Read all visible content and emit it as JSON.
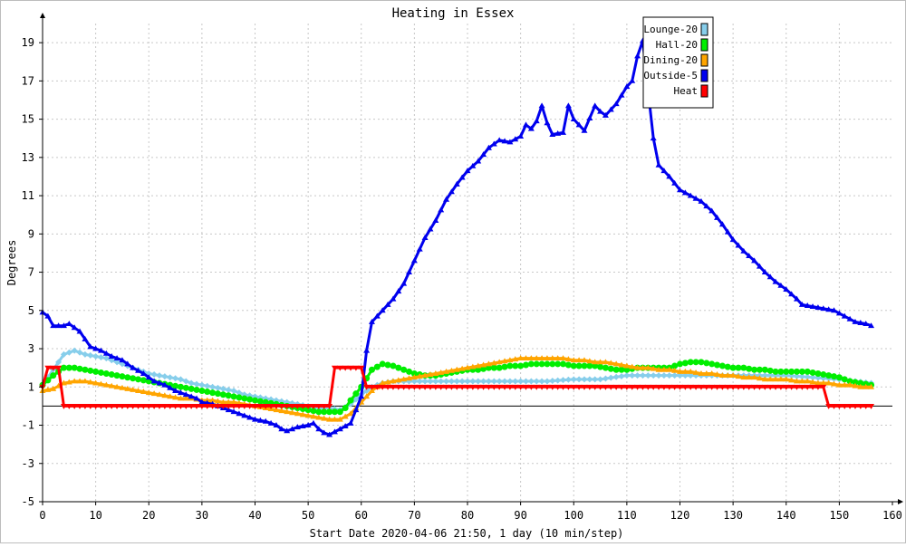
{
  "chart_data": {
    "type": "line",
    "title": "Heating in Essex",
    "xlabel": "Start Date 2020-04-06 21:50, 1 day (10 min/step)",
    "ylabel": "Degrees",
    "xlim": [
      0,
      160
    ],
    "ylim": [
      -5,
      20
    ],
    "xticks": [
      0,
      10,
      20,
      30,
      40,
      50,
      60,
      70,
      80,
      90,
      100,
      110,
      120,
      130,
      140,
      150,
      160
    ],
    "yticks": [
      -5,
      -3,
      -1,
      1,
      3,
      5,
      7,
      9,
      11,
      13,
      15,
      17,
      19
    ],
    "grid": true,
    "legend_position": "top-right",
    "zero_line": true,
    "series": [
      {
        "name": "Lounge-20",
        "color": "#87ceeb",
        "marker": "diamond",
        "points": [
          [
            0,
            1.1
          ],
          [
            2,
            1.9
          ],
          [
            4,
            2.7
          ],
          [
            6,
            2.9
          ],
          [
            8,
            2.7
          ],
          [
            10,
            2.6
          ],
          [
            12,
            2.5
          ],
          [
            14,
            2.3
          ],
          [
            16,
            2.1
          ],
          [
            18,
            1.9
          ],
          [
            20,
            1.7
          ],
          [
            22,
            1.6
          ],
          [
            24,
            1.5
          ],
          [
            26,
            1.4
          ],
          [
            28,
            1.2
          ],
          [
            30,
            1.1
          ],
          [
            32,
            1.0
          ],
          [
            34,
            0.9
          ],
          [
            36,
            0.8
          ],
          [
            38,
            0.6
          ],
          [
            40,
            0.5
          ],
          [
            42,
            0.4
          ],
          [
            44,
            0.3
          ],
          [
            46,
            0.2
          ],
          [
            48,
            0.1
          ],
          [
            50,
            0.0
          ],
          [
            52,
            -0.1
          ],
          [
            54,
            -0.1
          ],
          [
            56,
            -0.2
          ],
          [
            58,
            0.1
          ],
          [
            60,
            0.6
          ],
          [
            62,
            1.0
          ],
          [
            64,
            1.2
          ],
          [
            66,
            1.3
          ],
          [
            70,
            1.3
          ],
          [
            75,
            1.3
          ],
          [
            80,
            1.3
          ],
          [
            85,
            1.3
          ],
          [
            90,
            1.3
          ],
          [
            95,
            1.3
          ],
          [
            100,
            1.4
          ],
          [
            105,
            1.4
          ],
          [
            110,
            1.6
          ],
          [
            115,
            1.6
          ],
          [
            120,
            1.6
          ],
          [
            125,
            1.6
          ],
          [
            130,
            1.6
          ],
          [
            135,
            1.6
          ],
          [
            140,
            1.6
          ],
          [
            145,
            1.5
          ],
          [
            150,
            1.4
          ],
          [
            153,
            1.3
          ],
          [
            156,
            1.2
          ]
        ]
      },
      {
        "name": "Hall-20",
        "color": "#00ee00",
        "marker": "circle",
        "points": [
          [
            0,
            1.1
          ],
          [
            2,
            1.6
          ],
          [
            4,
            2.0
          ],
          [
            6,
            2.0
          ],
          [
            8,
            1.9
          ],
          [
            10,
            1.8
          ],
          [
            12,
            1.7
          ],
          [
            14,
            1.6
          ],
          [
            16,
            1.5
          ],
          [
            18,
            1.4
          ],
          [
            20,
            1.3
          ],
          [
            22,
            1.2
          ],
          [
            24,
            1.1
          ],
          [
            26,
            1.0
          ],
          [
            28,
            0.9
          ],
          [
            30,
            0.8
          ],
          [
            32,
            0.7
          ],
          [
            34,
            0.6
          ],
          [
            36,
            0.5
          ],
          [
            38,
            0.4
          ],
          [
            40,
            0.3
          ],
          [
            42,
            0.2
          ],
          [
            44,
            0.1
          ],
          [
            46,
            0.0
          ],
          [
            48,
            -0.1
          ],
          [
            50,
            -0.2
          ],
          [
            52,
            -0.3
          ],
          [
            54,
            -0.3
          ],
          [
            56,
            -0.3
          ],
          [
            57,
            -0.1
          ],
          [
            58,
            0.3
          ],
          [
            60,
            1.0
          ],
          [
            62,
            1.9
          ],
          [
            64,
            2.2
          ],
          [
            66,
            2.1
          ],
          [
            68,
            1.9
          ],
          [
            70,
            1.7
          ],
          [
            72,
            1.6
          ],
          [
            74,
            1.6
          ],
          [
            76,
            1.7
          ],
          [
            78,
            1.8
          ],
          [
            80,
            1.9
          ],
          [
            82,
            1.9
          ],
          [
            84,
            2.0
          ],
          [
            86,
            2.0
          ],
          [
            88,
            2.1
          ],
          [
            90,
            2.1
          ],
          [
            92,
            2.2
          ],
          [
            94,
            2.2
          ],
          [
            96,
            2.2
          ],
          [
            98,
            2.2
          ],
          [
            100,
            2.1
          ],
          [
            102,
            2.1
          ],
          [
            104,
            2.1
          ],
          [
            106,
            2.0
          ],
          [
            108,
            1.9
          ],
          [
            110,
            1.9
          ],
          [
            112,
            2.0
          ],
          [
            114,
            2.0
          ],
          [
            116,
            2.0
          ],
          [
            118,
            2.0
          ],
          [
            120,
            2.2
          ],
          [
            122,
            2.3
          ],
          [
            124,
            2.3
          ],
          [
            126,
            2.2
          ],
          [
            128,
            2.1
          ],
          [
            130,
            2.0
          ],
          [
            132,
            2.0
          ],
          [
            134,
            1.9
          ],
          [
            136,
            1.9
          ],
          [
            138,
            1.8
          ],
          [
            140,
            1.8
          ],
          [
            142,
            1.8
          ],
          [
            144,
            1.8
          ],
          [
            146,
            1.7
          ],
          [
            148,
            1.6
          ],
          [
            150,
            1.5
          ],
          [
            152,
            1.3
          ],
          [
            154,
            1.2
          ],
          [
            156,
            1.1
          ]
        ]
      },
      {
        "name": "Dining-20",
        "color": "#ffa500",
        "marker": "triangle",
        "points": [
          [
            0,
            0.8
          ],
          [
            2,
            0.9
          ],
          [
            4,
            1.2
          ],
          [
            6,
            1.3
          ],
          [
            8,
            1.3
          ],
          [
            10,
            1.2
          ],
          [
            12,
            1.1
          ],
          [
            14,
            1.0
          ],
          [
            16,
            0.9
          ],
          [
            18,
            0.8
          ],
          [
            20,
            0.7
          ],
          [
            22,
            0.6
          ],
          [
            24,
            0.5
          ],
          [
            26,
            0.4
          ],
          [
            28,
            0.4
          ],
          [
            30,
            0.3
          ],
          [
            32,
            0.3
          ],
          [
            34,
            0.2
          ],
          [
            36,
            0.2
          ],
          [
            38,
            0.1
          ],
          [
            40,
            0.0
          ],
          [
            42,
            -0.1
          ],
          [
            44,
            -0.2
          ],
          [
            46,
            -0.3
          ],
          [
            48,
            -0.4
          ],
          [
            50,
            -0.5
          ],
          [
            52,
            -0.6
          ],
          [
            54,
            -0.7
          ],
          [
            56,
            -0.7
          ],
          [
            58,
            -0.4
          ],
          [
            60,
            0.2
          ],
          [
            62,
            0.8
          ],
          [
            64,
            1.2
          ],
          [
            66,
            1.3
          ],
          [
            68,
            1.4
          ],
          [
            70,
            1.5
          ],
          [
            72,
            1.6
          ],
          [
            74,
            1.7
          ],
          [
            76,
            1.8
          ],
          [
            78,
            1.9
          ],
          [
            80,
            2.0
          ],
          [
            82,
            2.1
          ],
          [
            84,
            2.2
          ],
          [
            86,
            2.3
          ],
          [
            88,
            2.4
          ],
          [
            90,
            2.5
          ],
          [
            92,
            2.5
          ],
          [
            94,
            2.5
          ],
          [
            96,
            2.5
          ],
          [
            98,
            2.5
          ],
          [
            100,
            2.4
          ],
          [
            102,
            2.4
          ],
          [
            104,
            2.3
          ],
          [
            106,
            2.3
          ],
          [
            108,
            2.2
          ],
          [
            110,
            2.1
          ],
          [
            112,
            2.0
          ],
          [
            114,
            2.0
          ],
          [
            116,
            1.9
          ],
          [
            118,
            1.9
          ],
          [
            120,
            1.8
          ],
          [
            122,
            1.8
          ],
          [
            124,
            1.7
          ],
          [
            126,
            1.7
          ],
          [
            128,
            1.6
          ],
          [
            130,
            1.6
          ],
          [
            132,
            1.5
          ],
          [
            134,
            1.5
          ],
          [
            136,
            1.4
          ],
          [
            138,
            1.4
          ],
          [
            140,
            1.4
          ],
          [
            142,
            1.3
          ],
          [
            144,
            1.3
          ],
          [
            146,
            1.2
          ],
          [
            148,
            1.2
          ],
          [
            150,
            1.1
          ],
          [
            152,
            1.1
          ],
          [
            154,
            1.0
          ],
          [
            156,
            1.0
          ]
        ]
      },
      {
        "name": "Outside-5",
        "color": "#0000ee",
        "marker": "triangle",
        "points": [
          [
            0,
            4.9
          ],
          [
            1,
            4.7
          ],
          [
            2,
            4.2
          ],
          [
            4,
            4.2
          ],
          [
            5,
            4.3
          ],
          [
            7,
            3.9
          ],
          [
            9,
            3.1
          ],
          [
            11,
            2.9
          ],
          [
            13,
            2.6
          ],
          [
            15,
            2.4
          ],
          [
            17,
            2.0
          ],
          [
            19,
            1.7
          ],
          [
            21,
            1.3
          ],
          [
            23,
            1.1
          ],
          [
            25,
            0.8
          ],
          [
            27,
            0.6
          ],
          [
            29,
            0.4
          ],
          [
            30,
            0.2
          ],
          [
            32,
            0.1
          ],
          [
            34,
            -0.1
          ],
          [
            36,
            -0.3
          ],
          [
            38,
            -0.5
          ],
          [
            40,
            -0.7
          ],
          [
            42,
            -0.8
          ],
          [
            44,
            -1.0
          ],
          [
            45,
            -1.2
          ],
          [
            46,
            -1.3
          ],
          [
            48,
            -1.1
          ],
          [
            50,
            -1.0
          ],
          [
            51,
            -0.9
          ],
          [
            52,
            -1.2
          ],
          [
            53,
            -1.4
          ],
          [
            54,
            -1.5
          ],
          [
            56,
            -1.2
          ],
          [
            58,
            -0.9
          ],
          [
            60,
            0.5
          ],
          [
            61,
            2.9
          ],
          [
            62,
            4.4
          ],
          [
            64,
            5.0
          ],
          [
            66,
            5.6
          ],
          [
            68,
            6.4
          ],
          [
            70,
            7.6
          ],
          [
            72,
            8.8
          ],
          [
            74,
            9.7
          ],
          [
            76,
            10.8
          ],
          [
            78,
            11.6
          ],
          [
            80,
            12.3
          ],
          [
            82,
            12.8
          ],
          [
            84,
            13.5
          ],
          [
            86,
            13.9
          ],
          [
            88,
            13.8
          ],
          [
            90,
            14.1
          ],
          [
            91,
            14.7
          ],
          [
            92,
            14.5
          ],
          [
            93,
            14.9
          ],
          [
            94,
            15.7
          ],
          [
            95,
            14.8
          ],
          [
            96,
            14.2
          ],
          [
            98,
            14.3
          ],
          [
            99,
            15.7
          ],
          [
            100,
            15.0
          ],
          [
            102,
            14.4
          ],
          [
            104,
            15.7
          ],
          [
            105,
            15.4
          ],
          [
            106,
            15.2
          ],
          [
            107,
            15.5
          ],
          [
            108,
            15.8
          ],
          [
            110,
            16.7
          ],
          [
            111,
            17.0
          ],
          [
            112,
            18.3
          ],
          [
            113,
            19.1
          ],
          [
            114,
            16.5
          ],
          [
            115,
            14.0
          ],
          [
            116,
            12.6
          ],
          [
            118,
            12.0
          ],
          [
            120,
            11.3
          ],
          [
            122,
            11.0
          ],
          [
            124,
            10.7
          ],
          [
            126,
            10.2
          ],
          [
            128,
            9.5
          ],
          [
            130,
            8.7
          ],
          [
            132,
            8.1
          ],
          [
            134,
            7.6
          ],
          [
            136,
            7.0
          ],
          [
            138,
            6.5
          ],
          [
            140,
            6.1
          ],
          [
            142,
            5.6
          ],
          [
            143,
            5.3
          ],
          [
            145,
            5.2
          ],
          [
            147,
            5.1
          ],
          [
            149,
            5.0
          ],
          [
            151,
            4.7
          ],
          [
            153,
            4.4
          ],
          [
            155,
            4.3
          ],
          [
            156,
            4.2
          ]
        ]
      },
      {
        "name": "Heat",
        "color": "#ff0000",
        "marker": "triangle-down",
        "points": [
          [
            0,
            1.0
          ],
          [
            1,
            2.0
          ],
          [
            2,
            2.0
          ],
          [
            3,
            2.0
          ],
          [
            4,
            0.0
          ],
          [
            54,
            0.0
          ],
          [
            55,
            2.0
          ],
          [
            60,
            2.0
          ],
          [
            61,
            1.0
          ],
          [
            147,
            1.0
          ],
          [
            148,
            0.0
          ],
          [
            156,
            0.0
          ]
        ]
      }
    ]
  }
}
